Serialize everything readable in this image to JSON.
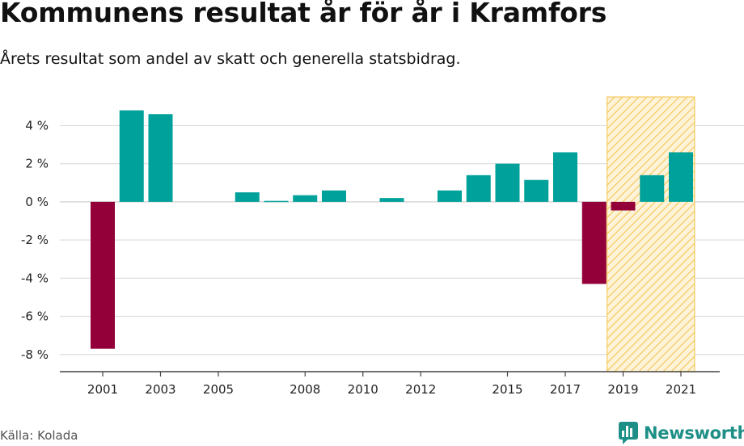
{
  "header": {
    "title": "Kommunens resultat år för år i Kramfors",
    "subtitle": "Årets resultat som andel av skatt och generella statsbidrag."
  },
  "footer": {
    "source": "Källa: Kolada",
    "brand": "Newsworthy"
  },
  "colors": {
    "positive": "#00a19a",
    "negative": "#930039",
    "highlight_fill": "#fdf3d9",
    "highlight_stroke": "#f7c960",
    "brand": "#1e8f87"
  },
  "chart_data": {
    "type": "bar",
    "years": [
      2001,
      2002,
      2003,
      2004,
      2005,
      2006,
      2007,
      2008,
      2009,
      2010,
      2011,
      2012,
      2013,
      2014,
      2015,
      2016,
      2017,
      2018,
      2019,
      2020,
      2021
    ],
    "values": [
      -7.7,
      4.8,
      4.6,
      0,
      0,
      0.5,
      0.05,
      0.35,
      0.6,
      0,
      0.2,
      0,
      0.6,
      1.4,
      2.0,
      1.15,
      2.6,
      -4.3,
      -0.45,
      1.4,
      2.6
    ],
    "x_tick_labels": [
      "2001",
      "2003",
      "2005",
      "2008",
      "2010",
      "2012",
      "2015",
      "2017",
      "2019",
      "2021"
    ],
    "y_ticks": [
      4,
      2,
      0,
      -2,
      -4,
      -6,
      -8
    ],
    "y_tick_labels": [
      "4 %",
      "2 %",
      "0 %",
      "-2 %",
      "-4 %",
      "-6 %",
      "-8 %"
    ],
    "ylim": [
      -8.9,
      5.5
    ],
    "highlight_years": [
      2019,
      2021
    ],
    "grid": true
  }
}
